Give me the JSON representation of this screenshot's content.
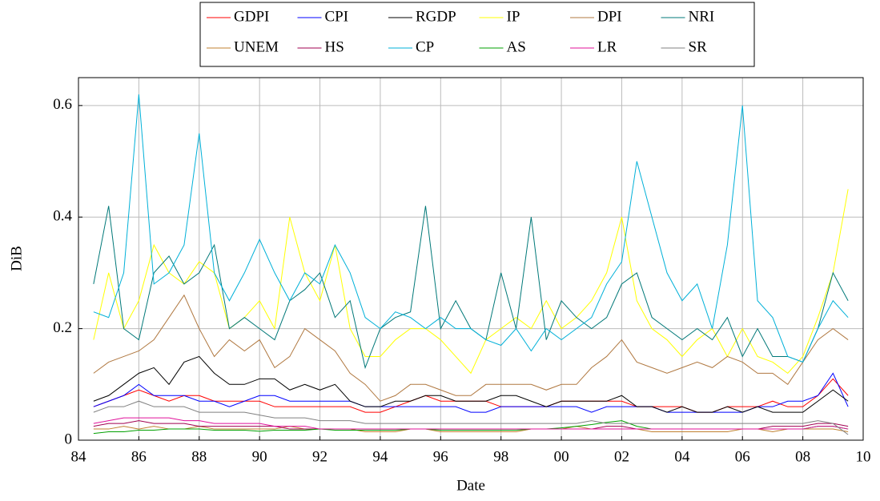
{
  "chart_data": {
    "type": "line",
    "x_label": "Date",
    "y_label": "DiB",
    "xlim": [
      1984,
      2010
    ],
    "ylim": [
      0,
      0.65
    ],
    "xticks": [
      {
        "value": 1984,
        "label": "84"
      },
      {
        "value": 1986,
        "label": "86"
      },
      {
        "value": 1988,
        "label": "88"
      },
      {
        "value": 1990,
        "label": "90"
      },
      {
        "value": 1992,
        "label": "92"
      },
      {
        "value": 1994,
        "label": "94"
      },
      {
        "value": 1996,
        "label": "96"
      },
      {
        "value": 1998,
        "label": "98"
      },
      {
        "value": 2000,
        "label": "00"
      },
      {
        "value": 2002,
        "label": "02"
      },
      {
        "value": 2004,
        "label": "04"
      },
      {
        "value": 2006,
        "label": "06"
      },
      {
        "value": 2008,
        "label": "08"
      },
      {
        "value": 2010,
        "label": "10"
      }
    ],
    "yticks": [
      0,
      0.2,
      0.4,
      0.6
    ],
    "grid": true,
    "legend": "top",
    "x": [
      1984.5,
      1985,
      1985.5,
      1986,
      1986.5,
      1987,
      1987.5,
      1988,
      1988.5,
      1989,
      1989.5,
      1990,
      1990.5,
      1991,
      1991.5,
      1992,
      1992.5,
      1993,
      1993.5,
      1994,
      1994.5,
      1995,
      1995.5,
      1996,
      1996.5,
      1997,
      1997.5,
      1998,
      1998.5,
      1999,
      1999.5,
      2000,
      2000.5,
      2001,
      2001.5,
      2002,
      2002.5,
      2003,
      2003.5,
      2004,
      2004.5,
      2005,
      2005.5,
      2006,
      2006.5,
      2007,
      2007.5,
      2008,
      2008.5,
      2009,
      2009.5
    ],
    "series": [
      {
        "name": "GDPI",
        "color": "#ff0000",
        "values": [
          0.06,
          0.07,
          0.08,
          0.09,
          0.08,
          0.07,
          0.08,
          0.08,
          0.07,
          0.07,
          0.07,
          0.07,
          0.06,
          0.06,
          0.06,
          0.06,
          0.06,
          0.06,
          0.05,
          0.05,
          0.06,
          0.07,
          0.08,
          0.07,
          0.07,
          0.07,
          0.07,
          0.06,
          0.06,
          0.06,
          0.06,
          0.07,
          0.07,
          0.07,
          0.07,
          0.07,
          0.06,
          0.06,
          0.06,
          0.06,
          0.05,
          0.05,
          0.06,
          0.06,
          0.06,
          0.07,
          0.06,
          0.06,
          0.08,
          0.11,
          0.08
        ]
      },
      {
        "name": "CPI",
        "color": "#0000ff",
        "values": [
          0.06,
          0.07,
          0.08,
          0.1,
          0.08,
          0.08,
          0.08,
          0.07,
          0.07,
          0.06,
          0.07,
          0.08,
          0.08,
          0.07,
          0.07,
          0.07,
          0.07,
          0.07,
          0.06,
          0.06,
          0.06,
          0.06,
          0.06,
          0.06,
          0.06,
          0.05,
          0.05,
          0.06,
          0.06,
          0.06,
          0.06,
          0.06,
          0.06,
          0.05,
          0.06,
          0.06,
          0.06,
          0.06,
          0.05,
          0.05,
          0.05,
          0.05,
          0.05,
          0.05,
          0.06,
          0.06,
          0.07,
          0.07,
          0.08,
          0.12,
          0.06
        ]
      },
      {
        "name": "RGDP",
        "color": "#000000",
        "values": [
          0.07,
          0.08,
          0.1,
          0.12,
          0.13,
          0.1,
          0.14,
          0.15,
          0.12,
          0.1,
          0.1,
          0.11,
          0.11,
          0.09,
          0.1,
          0.09,
          0.1,
          0.07,
          0.06,
          0.06,
          0.07,
          0.07,
          0.08,
          0.08,
          0.07,
          0.07,
          0.07,
          0.08,
          0.08,
          0.07,
          0.06,
          0.07,
          0.07,
          0.07,
          0.07,
          0.08,
          0.06,
          0.06,
          0.05,
          0.06,
          0.05,
          0.05,
          0.06,
          0.05,
          0.06,
          0.05,
          0.05,
          0.05,
          0.07,
          0.09,
          0.07
        ]
      },
      {
        "name": "IP",
        "color": "#ffff00",
        "values": [
          0.18,
          0.3,
          0.2,
          0.25,
          0.35,
          0.3,
          0.28,
          0.32,
          0.3,
          0.2,
          0.22,
          0.25,
          0.2,
          0.4,
          0.3,
          0.25,
          0.35,
          0.2,
          0.15,
          0.15,
          0.18,
          0.2,
          0.2,
          0.18,
          0.15,
          0.12,
          0.18,
          0.2,
          0.22,
          0.2,
          0.25,
          0.2,
          0.22,
          0.25,
          0.3,
          0.4,
          0.25,
          0.2,
          0.18,
          0.15,
          0.18,
          0.2,
          0.15,
          0.2,
          0.15,
          0.14,
          0.12,
          0.15,
          0.22,
          0.3,
          0.45
        ]
      },
      {
        "name": "DPI",
        "color": "#b07840",
        "values": [
          0.12,
          0.14,
          0.15,
          0.16,
          0.18,
          0.22,
          0.26,
          0.2,
          0.15,
          0.18,
          0.16,
          0.18,
          0.13,
          0.15,
          0.2,
          0.18,
          0.16,
          0.12,
          0.1,
          0.07,
          0.08,
          0.1,
          0.1,
          0.09,
          0.08,
          0.08,
          0.1,
          0.1,
          0.1,
          0.1,
          0.09,
          0.1,
          0.1,
          0.13,
          0.15,
          0.18,
          0.14,
          0.13,
          0.12,
          0.13,
          0.14,
          0.13,
          0.15,
          0.14,
          0.12,
          0.12,
          0.1,
          0.14,
          0.18,
          0.2,
          0.18
        ]
      },
      {
        "name": "NRI",
        "color": "#007878",
        "values": [
          0.28,
          0.42,
          0.2,
          0.18,
          0.3,
          0.33,
          0.28,
          0.3,
          0.35,
          0.2,
          0.22,
          0.2,
          0.18,
          0.25,
          0.27,
          0.3,
          0.22,
          0.25,
          0.13,
          0.2,
          0.22,
          0.23,
          0.42,
          0.2,
          0.25,
          0.2,
          0.18,
          0.3,
          0.2,
          0.4,
          0.18,
          0.25,
          0.22,
          0.2,
          0.22,
          0.28,
          0.3,
          0.22,
          0.2,
          0.18,
          0.2,
          0.18,
          0.22,
          0.15,
          0.2,
          0.15,
          0.15,
          0.14,
          0.2,
          0.3,
          0.25
        ]
      },
      {
        "name": "UNEM",
        "color": "#c08030",
        "values": [
          0.02,
          0.02,
          0.025,
          0.02,
          0.025,
          0.02,
          0.02,
          0.025,
          0.02,
          0.02,
          0.02,
          0.02,
          0.02,
          0.025,
          0.02,
          0.02,
          0.02,
          0.02,
          0.015,
          0.015,
          0.015,
          0.02,
          0.02,
          0.015,
          0.015,
          0.015,
          0.015,
          0.015,
          0.015,
          0.02,
          0.02,
          0.02,
          0.025,
          0.02,
          0.02,
          0.02,
          0.02,
          0.015,
          0.015,
          0.015,
          0.015,
          0.015,
          0.015,
          0.02,
          0.02,
          0.015,
          0.02,
          0.02,
          0.02,
          0.02,
          0.015
        ]
      },
      {
        "name": "HS",
        "color": "#a00050",
        "values": [
          0.025,
          0.03,
          0.03,
          0.035,
          0.03,
          0.03,
          0.03,
          0.025,
          0.025,
          0.025,
          0.025,
          0.025,
          0.025,
          0.02,
          0.02,
          0.02,
          0.02,
          0.02,
          0.02,
          0.02,
          0.02,
          0.02,
          0.02,
          0.02,
          0.02,
          0.02,
          0.02,
          0.02,
          0.02,
          0.02,
          0.02,
          0.02,
          0.02,
          0.02,
          0.025,
          0.025,
          0.02,
          0.02,
          0.02,
          0.02,
          0.02,
          0.02,
          0.02,
          0.02,
          0.02,
          0.025,
          0.025,
          0.025,
          0.03,
          0.03,
          0.025
        ]
      },
      {
        "name": "CP",
        "color": "#00b0d8",
        "values": [
          0.23,
          0.22,
          0.3,
          0.62,
          0.28,
          0.3,
          0.35,
          0.55,
          0.3,
          0.25,
          0.3,
          0.36,
          0.3,
          0.25,
          0.3,
          0.28,
          0.35,
          0.3,
          0.22,
          0.2,
          0.23,
          0.22,
          0.2,
          0.22,
          0.2,
          0.2,
          0.18,
          0.17,
          0.2,
          0.16,
          0.2,
          0.18,
          0.2,
          0.22,
          0.28,
          0.32,
          0.5,
          0.4,
          0.3,
          0.25,
          0.28,
          0.2,
          0.35,
          0.6,
          0.25,
          0.22,
          0.15,
          0.14,
          0.2,
          0.25,
          0.22
        ]
      },
      {
        "name": "AS",
        "color": "#00a000",
        "values": [
          0.012,
          0.015,
          0.015,
          0.018,
          0.018,
          0.02,
          0.02,
          0.02,
          0.018,
          0.018,
          0.018,
          0.016,
          0.018,
          0.018,
          0.018,
          0.02,
          0.018,
          0.018,
          0.018,
          0.018,
          0.018,
          0.02,
          0.02,
          0.018,
          0.018,
          0.018,
          0.018,
          0.018,
          0.018,
          0.02,
          0.02,
          0.022,
          0.025,
          0.028,
          0.032,
          0.035,
          0.025,
          0.02,
          0.02,
          0.02,
          0.02,
          0.02,
          0.02,
          0.02,
          0.02,
          0.02,
          0.02,
          0.02,
          0.025,
          0.025,
          0.02
        ]
      },
      {
        "name": "LR",
        "color": "#e0109a",
        "values": [
          0.03,
          0.035,
          0.04,
          0.04,
          0.04,
          0.04,
          0.035,
          0.035,
          0.03,
          0.03,
          0.03,
          0.03,
          0.025,
          0.025,
          0.025,
          0.02,
          0.02,
          0.02,
          0.02,
          0.02,
          0.02,
          0.02,
          0.02,
          0.02,
          0.02,
          0.02,
          0.02,
          0.02,
          0.02,
          0.02,
          0.02,
          0.02,
          0.02,
          0.02,
          0.02,
          0.02,
          0.02,
          0.02,
          0.02,
          0.02,
          0.02,
          0.02,
          0.02,
          0.02,
          0.02,
          0.02,
          0.02,
          0.02,
          0.025,
          0.025,
          0.02
        ]
      },
      {
        "name": "SR",
        "color": "#808080",
        "values": [
          0.05,
          0.06,
          0.06,
          0.07,
          0.06,
          0.06,
          0.06,
          0.05,
          0.05,
          0.05,
          0.05,
          0.045,
          0.04,
          0.04,
          0.04,
          0.035,
          0.035,
          0.035,
          0.03,
          0.03,
          0.03,
          0.03,
          0.03,
          0.03,
          0.03,
          0.03,
          0.03,
          0.03,
          0.03,
          0.03,
          0.03,
          0.03,
          0.03,
          0.035,
          0.03,
          0.03,
          0.03,
          0.03,
          0.03,
          0.03,
          0.03,
          0.03,
          0.03,
          0.03,
          0.03,
          0.03,
          0.03,
          0.03,
          0.035,
          0.03,
          0.01
        ]
      }
    ]
  }
}
